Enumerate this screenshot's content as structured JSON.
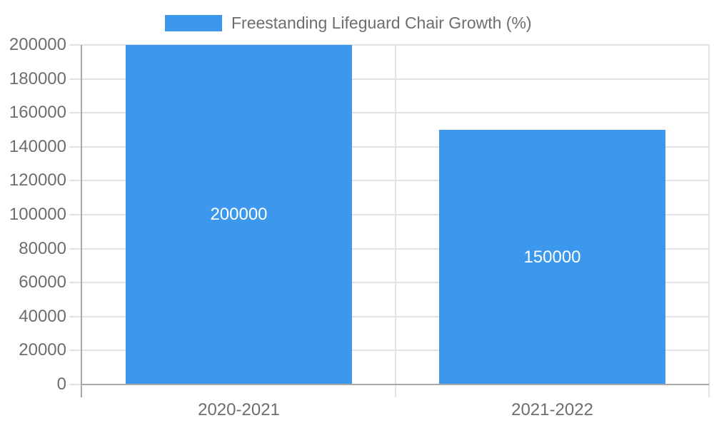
{
  "chart_data": {
    "type": "bar",
    "title": "Freestanding Lifeguard Chair Growth (%)",
    "legend": {
      "position": "top",
      "entries": [
        {
          "label": "Freestanding Lifeguard Chair Growth (%)",
          "color": "#3B98EC"
        }
      ]
    },
    "categories": [
      "2020-2021",
      "2021-2022"
    ],
    "series": [
      {
        "name": "Freestanding Lifeguard Chair Growth (%)",
        "values": [
          200000,
          150000
        ]
      }
    ],
    "bar_labels": [
      "200000",
      "150000"
    ],
    "xlabel": "",
    "ylabel": "",
    "ylim": [
      0,
      200000
    ],
    "y_tick_step": 20000,
    "y_tick_labels": [
      "0",
      "20000",
      "40000",
      "60000",
      "80000",
      "100000",
      "120000",
      "140000",
      "160000",
      "180000",
      "200000"
    ],
    "grid": "on",
    "bar_width_ratio": 0.72,
    "colors": {
      "bar": "#3B98EC",
      "bar_label_text": "#FFFFFF",
      "gridline": "#E3E3E3",
      "axis_line": "#A9A9A9",
      "axis_text": "#6E6E6E",
      "legend_text": "#6E6E6E",
      "background": "#FFFFFF"
    }
  }
}
